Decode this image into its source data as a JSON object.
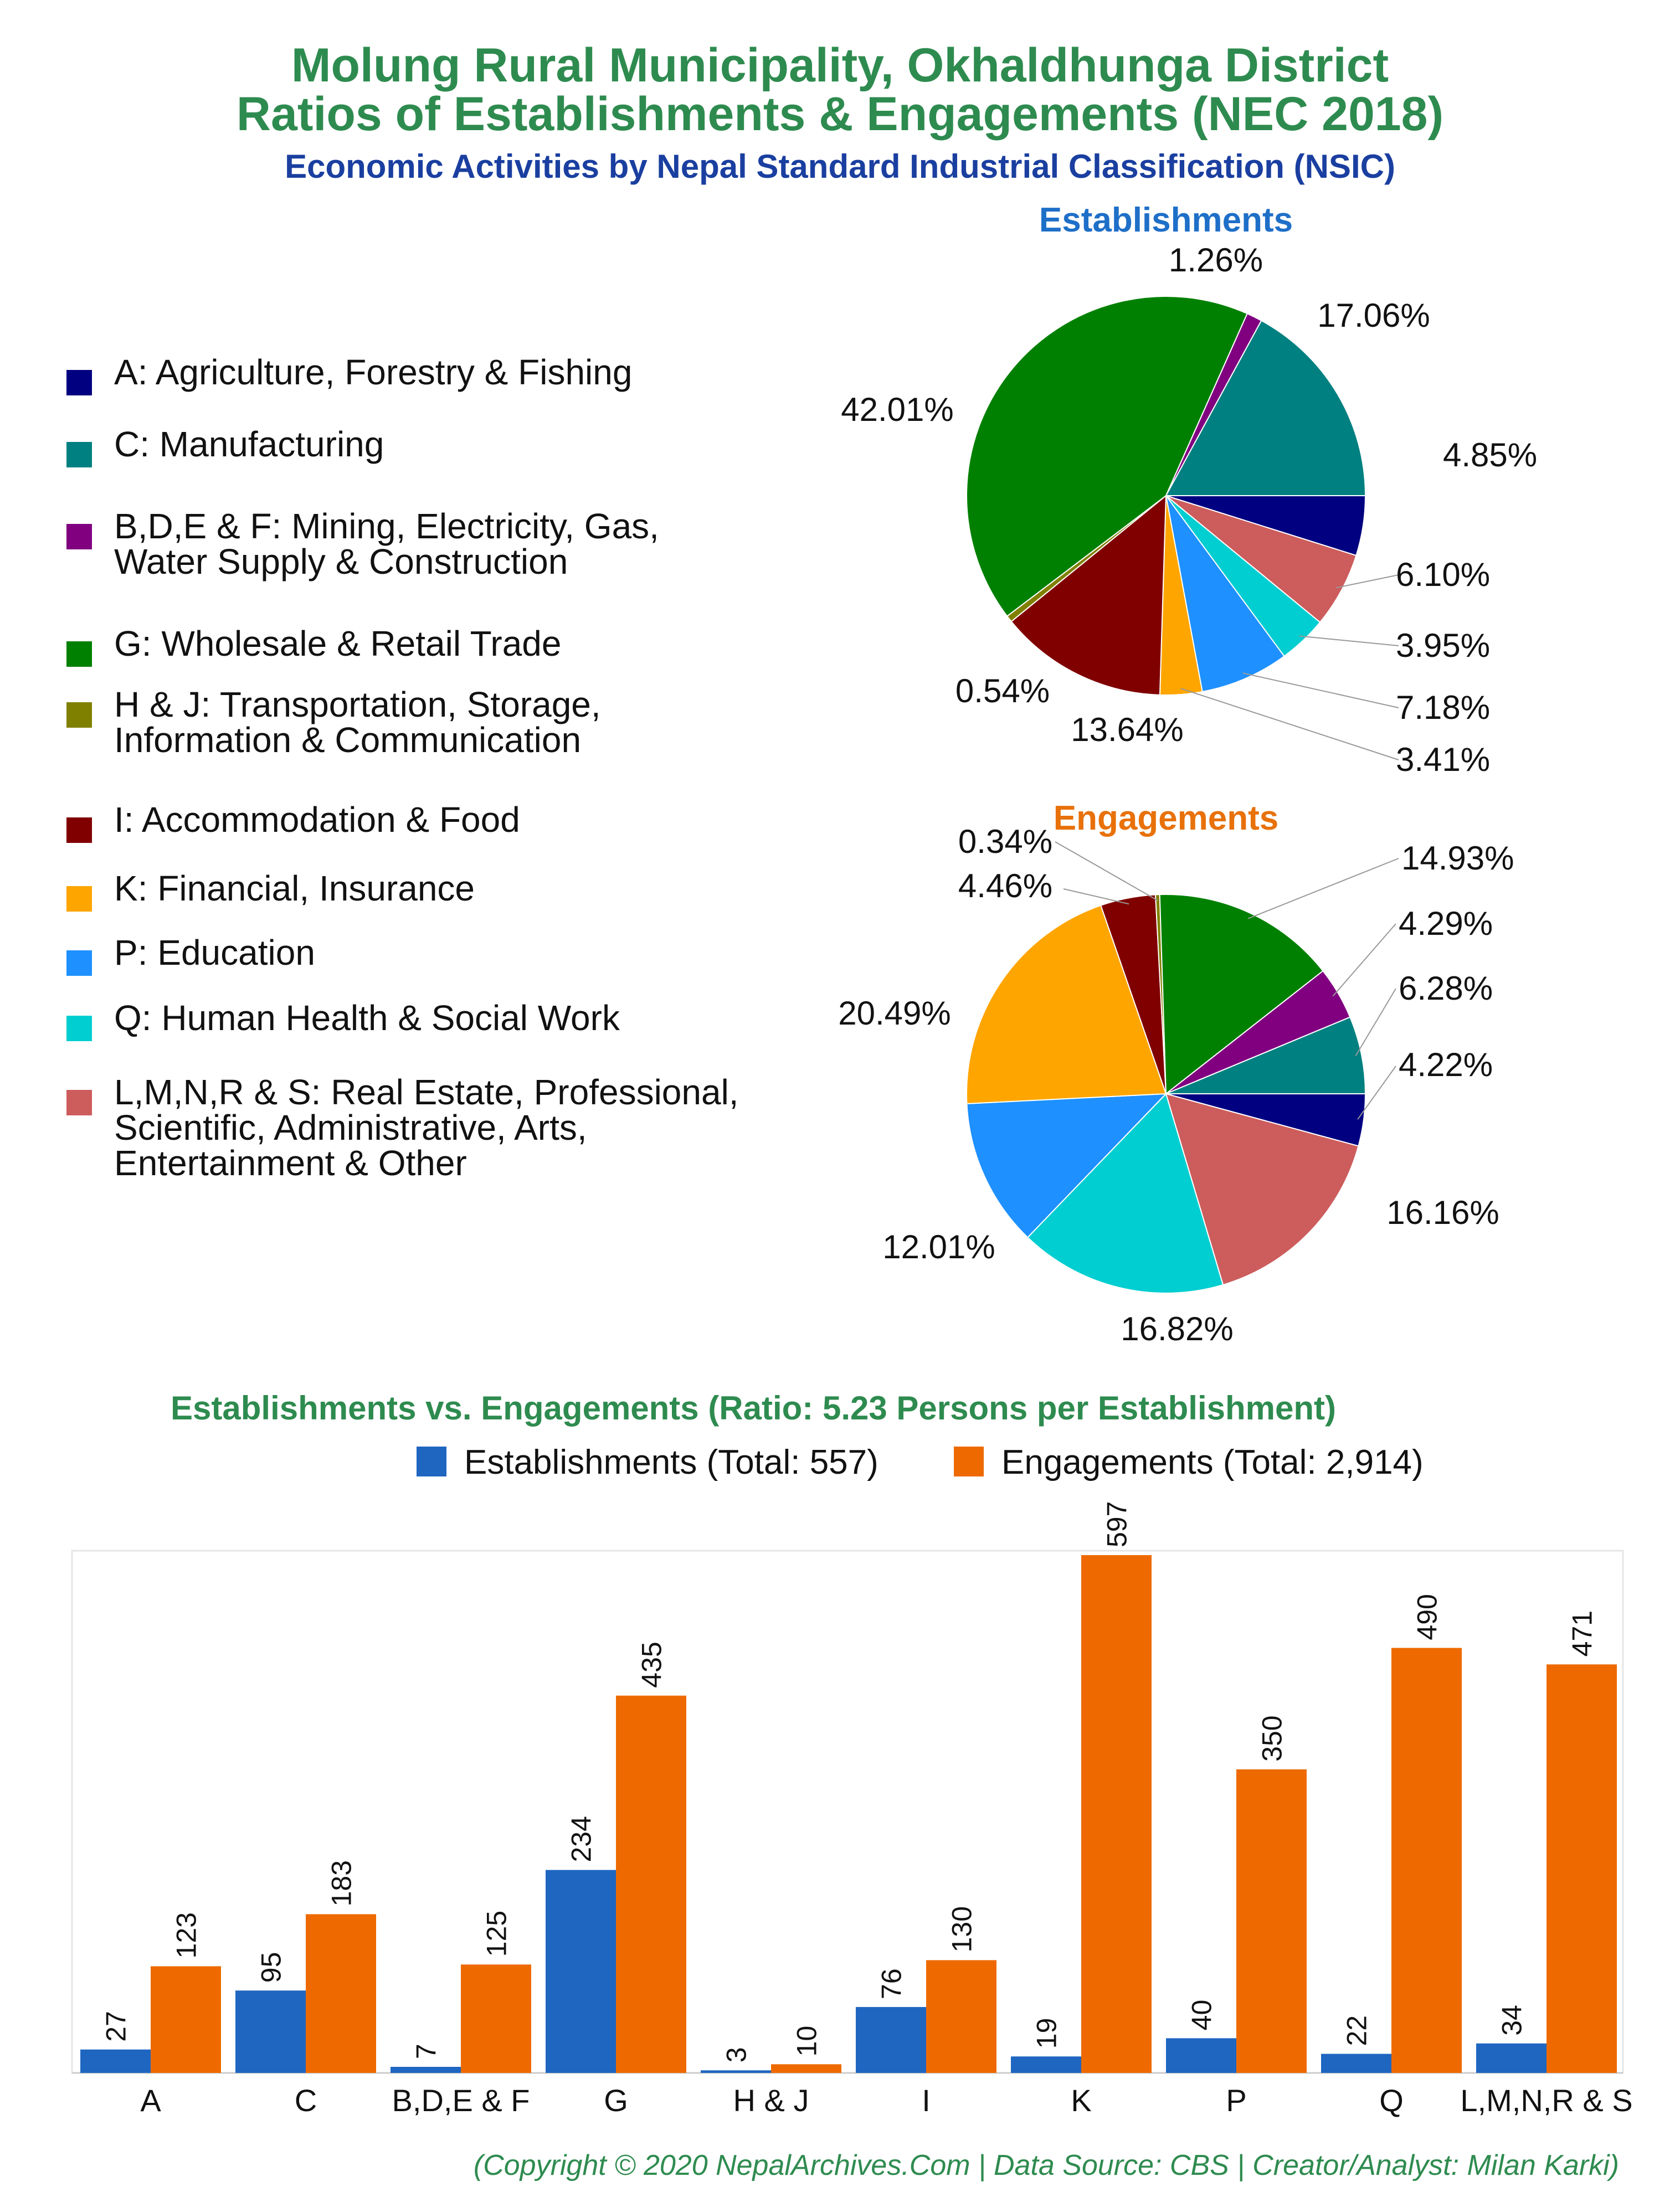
{
  "title_line1": "Molung Rural Municipality, Okhaldhunga District",
  "title_line2": "Ratios of Establishments & Engagements (NEC 2018)",
  "subtitle": "Economic Activities by Nepal Standard Industrial Classification (NSIC)",
  "legend": [
    {
      "label": "A: Agriculture, Forestry & Fishing",
      "color": "#000080"
    },
    {
      "label": "C: Manufacturing",
      "color": "#008080"
    },
    {
      "label": "B,D,E & F: Mining, Electricity, Gas,\nWater Supply & Construction",
      "color": "#800080"
    },
    {
      "label": "G: Wholesale & Retail Trade",
      "color": "#008000"
    },
    {
      "label": "H & J: Transportation, Storage,\nInformation & Communication",
      "color": "#808000"
    },
    {
      "label": "I: Accommodation & Food",
      "color": "#800000"
    },
    {
      "label": "K: Financial, Insurance",
      "color": "#FFA500"
    },
    {
      "label": "P: Education",
      "color": "#1E90FF"
    },
    {
      "label": "Q: Human Health & Social Work",
      "color": "#00CED1"
    },
    {
      "label": "L,M,N,R & S: Real Estate, Professional,\nScientific, Administrative, Arts,\nEntertainment & Other",
      "color": "#CD5C5C"
    }
  ],
  "chart_data": [
    {
      "type": "pie",
      "title": "Establishments",
      "title_color": "#1E6FC8",
      "slices": [
        {
          "code": "A",
          "value": 4.85,
          "label": "4.85%"
        },
        {
          "code": "L,M,N,R & S",
          "value": 6.1,
          "label": "6.10%"
        },
        {
          "code": "Q",
          "value": 3.95,
          "label": "3.95%"
        },
        {
          "code": "P",
          "value": 7.18,
          "label": "7.18%"
        },
        {
          "code": "K",
          "value": 3.41,
          "label": "3.41%"
        },
        {
          "code": "I",
          "value": 13.64,
          "label": "13.64%"
        },
        {
          "code": "H & J",
          "value": 0.54,
          "label": "0.54%"
        },
        {
          "code": "G",
          "value": 42.01,
          "label": "42.01%"
        },
        {
          "code": "B,D,E & F",
          "value": 1.26,
          "label": "1.26%"
        },
        {
          "code": "C",
          "value": 17.06,
          "label": "17.06%"
        }
      ]
    },
    {
      "type": "pie",
      "title": "Engagements",
      "title_color": "#E8710A",
      "slices": [
        {
          "code": "A",
          "value": 4.22,
          "label": "4.22%"
        },
        {
          "code": "L,M,N,R & S",
          "value": 16.16,
          "label": "16.16%"
        },
        {
          "code": "Q",
          "value": 16.82,
          "label": "16.82%"
        },
        {
          "code": "P",
          "value": 12.01,
          "label": "12.01%"
        },
        {
          "code": "K",
          "value": 20.49,
          "label": "20.49%"
        },
        {
          "code": "I",
          "value": 4.46,
          "label": "4.46%"
        },
        {
          "code": "H & J",
          "value": 0.34,
          "label": "0.34%"
        },
        {
          "code": "G",
          "value": 14.93,
          "label": "14.93%"
        },
        {
          "code": "B,D,E & F",
          "value": 4.29,
          "label": "4.29%"
        },
        {
          "code": "C",
          "value": 6.28,
          "label": "6.28%"
        }
      ]
    },
    {
      "type": "bar",
      "title": "Establishments vs. Engagements (Ratio: 5.23 Persons per Establishment)",
      "title_color": "#2E8B4F",
      "categories": [
        "A",
        "C",
        "B,D,E & F",
        "G",
        "H & J",
        "I",
        "K",
        "P",
        "Q",
        "L,M,N,R & S"
      ],
      "series": [
        {
          "name": "Establishments (Total: 557)",
          "color": "#1F66C1",
          "values": [
            27,
            95,
            7,
            234,
            3,
            76,
            19,
            40,
            22,
            34
          ]
        },
        {
          "name": "Engagements (Total: 2,914)",
          "color": "#EE6A00",
          "values": [
            123,
            183,
            125,
            435,
            10,
            130,
            597,
            350,
            490,
            471
          ]
        }
      ],
      "ylim": [
        0,
        597
      ],
      "grid": false
    }
  ],
  "footer": "(Copyright © 2020 NepalArchives.Com | Data Source: CBS | Creator/Analyst: Milan Karki)"
}
